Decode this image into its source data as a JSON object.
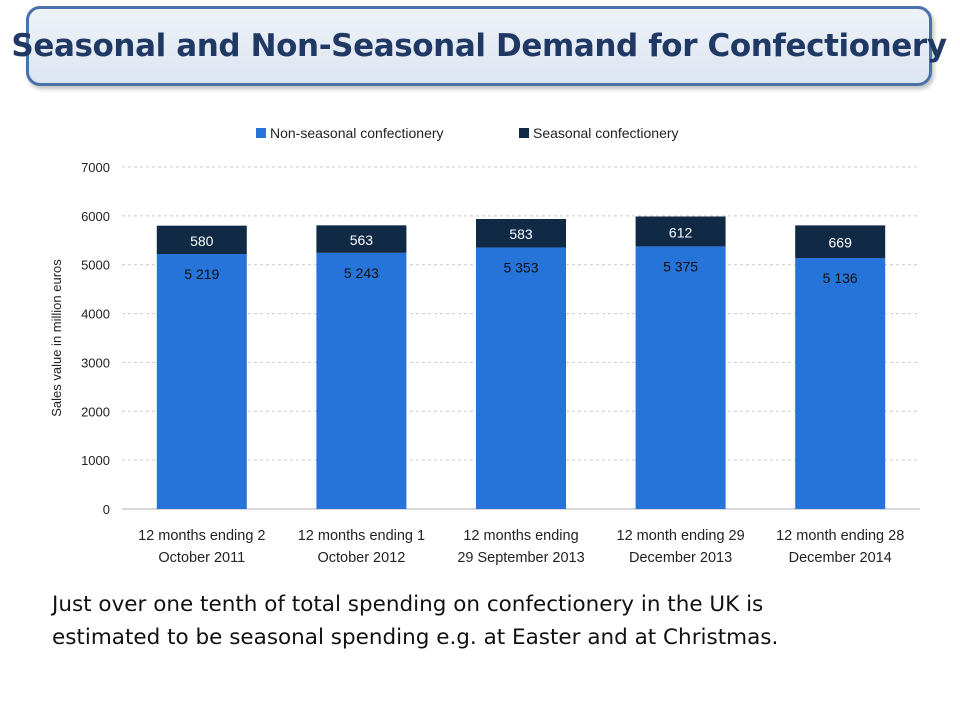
{
  "title": "Seasonal and Non-Seasonal Demand for Confectionery",
  "caption": {
    "line1": "Just over one tenth of total spending on confectionery in the UK is",
    "line2": "estimated to be seasonal spending e.g. at Easter and at Christmas."
  },
  "colors": {
    "non_seasonal": "#2673d9",
    "seasonal": "#102a45",
    "title_text": "#1f3864",
    "title_border": "#4a71a9",
    "grid": "#c9c9c9"
  },
  "chart_data": {
    "type": "bar",
    "stacked": true,
    "categories": [
      [
        "12 months ending 2",
        "October 2011"
      ],
      [
        "12 months ending 1",
        "October 2012"
      ],
      [
        "12 months ending",
        "29 September 2013"
      ],
      [
        "12 month ending 29",
        "December 2013"
      ],
      [
        "12 month ending 28",
        "December 2014"
      ]
    ],
    "series": [
      {
        "name": "Non-seasonal confectionery",
        "values": [
          5219,
          5243,
          5353,
          5375,
          5136
        ],
        "labels": [
          "5 219",
          "5 243",
          "5 353",
          "5 375",
          "5 136"
        ]
      },
      {
        "name": "Seasonal confectionery",
        "values": [
          580,
          563,
          583,
          612,
          669
        ],
        "labels": [
          "580",
          "563",
          "583",
          "612",
          "669"
        ]
      }
    ],
    "ylabel": "Sales value in million euros",
    "ylim": [
      0,
      7000
    ],
    "yticks": [
      0,
      1000,
      2000,
      3000,
      4000,
      5000,
      6000,
      7000
    ],
    "grid": "horizontal dashed",
    "legend_position": "top"
  }
}
